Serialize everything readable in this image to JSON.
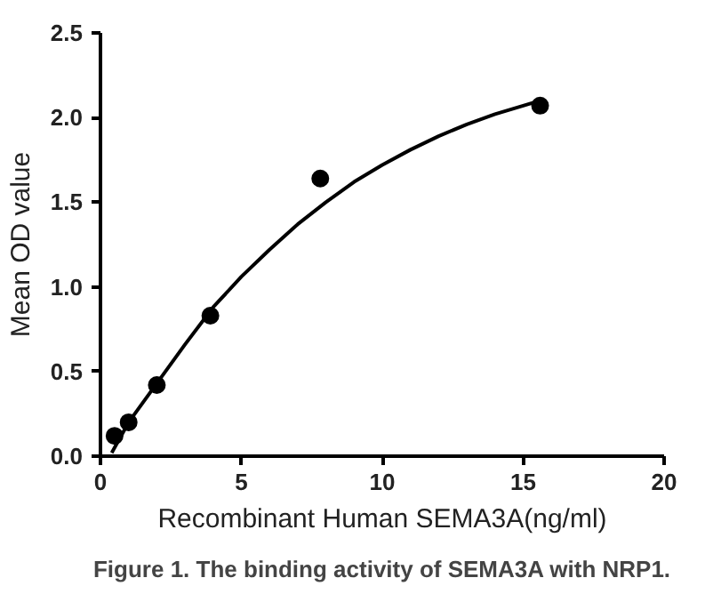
{
  "chart_data": {
    "type": "scatter",
    "xlabel": "Recombinant Human SEMA3A(ng/ml)",
    "ylabel": "Mean OD value",
    "annotations": [
      "Figure 1. The binding activity of SEMA3A with NRP1."
    ],
    "xlim": [
      0,
      20
    ],
    "xticks": [
      0,
      5,
      10,
      15,
      20
    ],
    "ylim": [
      0,
      2.5
    ],
    "yticks": [
      {
        "value": 0,
        "label": "0.0"
      },
      {
        "value": 0.5,
        "label": "0.5"
      },
      {
        "value": 1,
        "label": "1.0"
      },
      {
        "value": 1.5,
        "label": "1.5"
      },
      {
        "value": 2,
        "label": "2.0"
      },
      {
        "value": 2.5,
        "label": "2.5"
      }
    ],
    "grid": false,
    "series": [
      {
        "color": "#000000",
        "marker": "circle",
        "x": [
          0.5,
          1,
          2,
          3.9,
          7.8,
          15.6
        ],
        "values": [
          0.12,
          0.2,
          0.42,
          0.83,
          1.64,
          2.07
        ]
      },
      {
        "type": "line",
        "color": "#000000",
        "x": [
          0.4,
          1,
          2,
          3,
          4,
          5,
          6,
          7,
          8,
          9,
          10,
          11,
          12,
          13,
          14,
          15,
          15.6
        ],
        "values": [
          0.02,
          0.2,
          0.43,
          0.66,
          0.88,
          1.06,
          1.22,
          1.37,
          1.5,
          1.62,
          1.72,
          1.81,
          1.89,
          1.96,
          2.02,
          2.07,
          2.1
        ]
      }
    ]
  }
}
